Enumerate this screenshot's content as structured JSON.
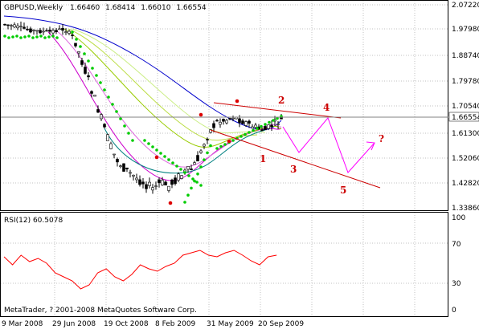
{
  "header": {
    "symbol": "GBPUSD",
    "timeframe": "Weekly",
    "ohlc": [
      "1.66460",
      "1.68414",
      "1.66010",
      "1.66554"
    ]
  },
  "price_axis": {
    "ticks": [
      "2.07220",
      "1.97980",
      "1.88740",
      "1.79780",
      "1.70540",
      "1.61300",
      "1.52060",
      "1.42820",
      "1.33860"
    ],
    "current_price": "1.66554"
  },
  "rsi": {
    "title": "RSI(12) 60.5078",
    "ticks": [
      "100",
      "70",
      "30",
      "0"
    ]
  },
  "time_axis": {
    "ticks": [
      "9 Mar 2008",
      "29 Jun 2008",
      "19 Oct 2008",
      "8 Feb 2009",
      "31 May 2009",
      "20 Sep 2009"
    ]
  },
  "copyright": "MetaTrader, ? 2001-2008 MetaQuotes Software Corp.",
  "wave_labels": [
    "1",
    "2",
    "3",
    "4",
    "5",
    "?"
  ],
  "colors": {
    "wave_red": "#cc0000",
    "projection_magenta": "#ff00ff",
    "sar_green": "#00cc00",
    "ma_blue": "#0000cc"
  }
}
